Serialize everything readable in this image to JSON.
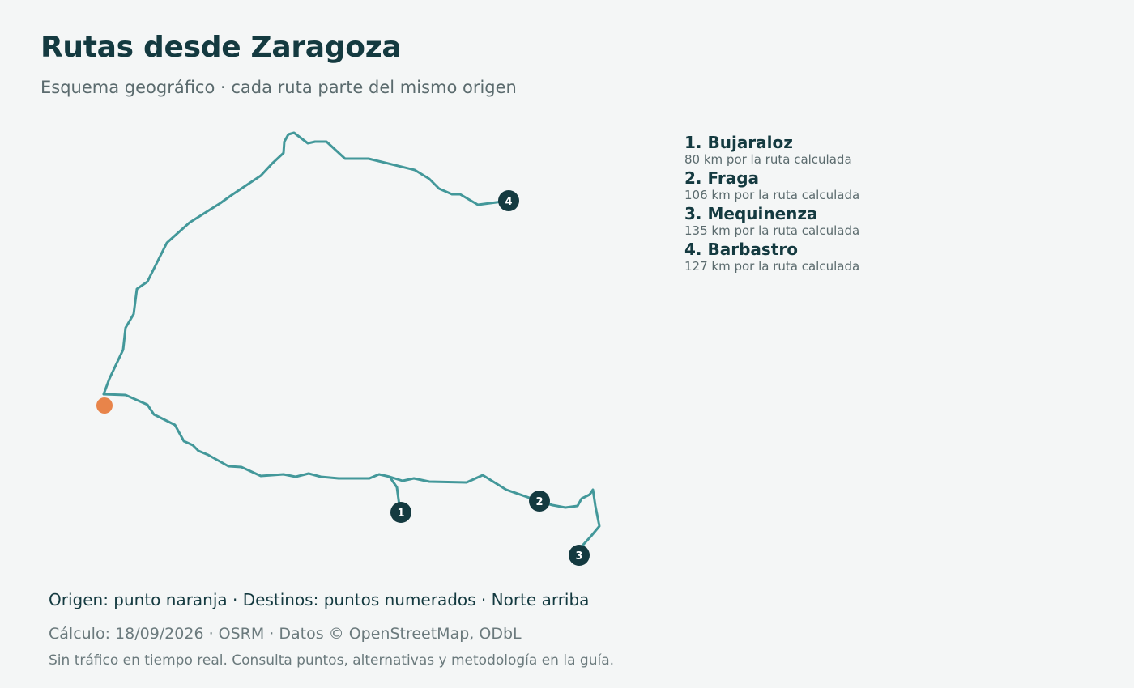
{
  "title": "Rutas desde Zaragoza",
  "subtitle": "Esquema geográfico · cada ruta parte del mismo origen",
  "legend": [
    {
      "label": "1. Bujaraloz",
      "distance": "80 km por la ruta calculada"
    },
    {
      "label": "2. Fraga",
      "distance": "106 km por la ruta calculada"
    },
    {
      "label": "3. Mequinenza",
      "distance": "135 km por la ruta calculada"
    },
    {
      "label": "4. Barbastro",
      "distance": "127 km por la ruta calculada"
    }
  ],
  "markers": {
    "destinations": [
      "1",
      "2",
      "3",
      "4"
    ]
  },
  "caption": "Origen: punto naranja · Destinos: puntos numerados · Norte arriba",
  "footnote_calc": "Cálculo: 18/09/2026 · OSRM · Datos © OpenStreetMap, ODbL",
  "footnote_info": "Sin tráfico en tiempo real. Consulta puntos, alternativas y metodología en la guía.",
  "colors": {
    "route": "#43989a",
    "origin": "#e8844a",
    "destination": "#143a40",
    "background": "#f4f6f6"
  }
}
